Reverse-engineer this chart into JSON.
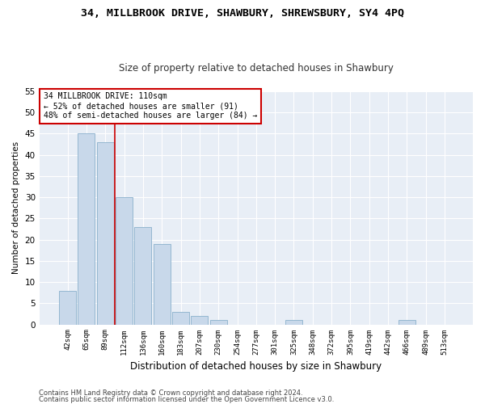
{
  "title": "34, MILLBROOK DRIVE, SHAWBURY, SHREWSBURY, SY4 4PQ",
  "subtitle": "Size of property relative to detached houses in Shawbury",
  "xlabel": "Distribution of detached houses by size in Shawbury",
  "ylabel": "Number of detached properties",
  "categories": [
    "42sqm",
    "65sqm",
    "89sqm",
    "112sqm",
    "136sqm",
    "160sqm",
    "183sqm",
    "207sqm",
    "230sqm",
    "254sqm",
    "277sqm",
    "301sqm",
    "325sqm",
    "348sqm",
    "372sqm",
    "395sqm",
    "419sqm",
    "442sqm",
    "466sqm",
    "489sqm",
    "513sqm"
  ],
  "values": [
    8,
    45,
    43,
    30,
    23,
    19,
    3,
    2,
    1,
    0,
    0,
    0,
    1,
    0,
    0,
    0,
    0,
    0,
    1,
    0,
    0
  ],
  "bar_color": "#c8d8ea",
  "bar_edge_color": "#8ab0cc",
  "background_color": "#e8eef6",
  "grid_color": "#ffffff",
  "red_line_x": 2.5,
  "annotation_text": "34 MILLBROOK DRIVE: 110sqm\n← 52% of detached houses are smaller (91)\n48% of semi-detached houses are larger (84) →",
  "annotation_box_color": "#ffffff",
  "annotation_box_edge": "#cc0000",
  "footer_line1": "Contains HM Land Registry data © Crown copyright and database right 2024.",
  "footer_line2": "Contains public sector information licensed under the Open Government Licence v3.0.",
  "ylim": [
    0,
    55
  ],
  "yticks": [
    0,
    5,
    10,
    15,
    20,
    25,
    30,
    35,
    40,
    45,
    50,
    55
  ],
  "fig_bg": "#ffffff"
}
